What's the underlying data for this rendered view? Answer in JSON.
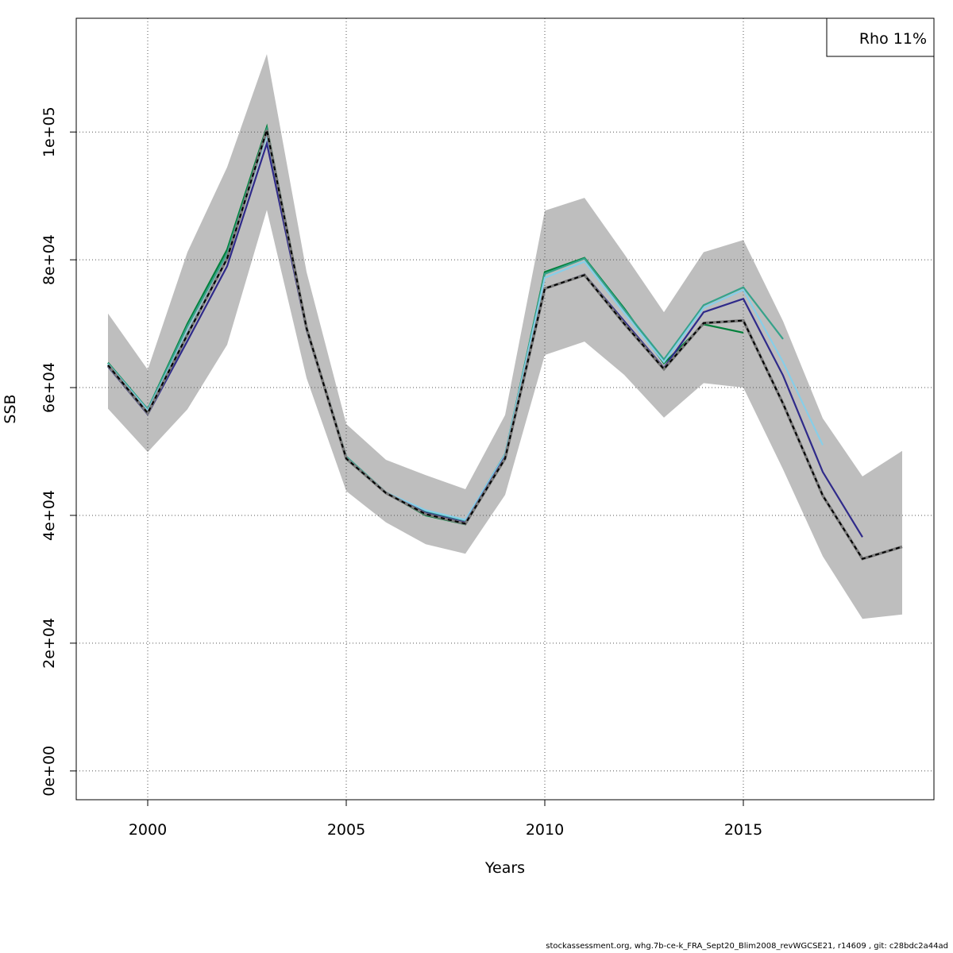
{
  "footer": "stockassessment.org, whg.7b-ce-k_FRA_Sept20_Blim2008_revWGCSE21, r14609 , git: c28bdc2a44ad",
  "chart_data": {
    "type": "line",
    "title": "",
    "xlabel": "Years",
    "ylabel": "SSB",
    "xlim": [
      1998.2,
      2019.8
    ],
    "ylim": [
      -4500,
      117800
    ],
    "x_ticks": [
      2000,
      2005,
      2010,
      2015
    ],
    "x_tick_labels": [
      "2000",
      "2005",
      "2010",
      "2015"
    ],
    "y_ticks": [
      0,
      20000,
      40000,
      60000,
      80000,
      100000
    ],
    "y_tick_labels": [
      "0e+00",
      "2e+04",
      "4e+04",
      "6e+04",
      "8e+04",
      "1e+05"
    ],
    "grid": true,
    "legend": {
      "placement": "top-right",
      "text": "Rho 11%"
    },
    "confidence_band": {
      "name": "confidence interval",
      "color": "#bebebe",
      "x": [
        1999,
        2000,
        2001,
        2002,
        2003,
        2004,
        2005,
        2006,
        2007,
        2008,
        2009,
        2010,
        2011,
        2012,
        2013,
        2014,
        2015,
        2016,
        2017,
        2018,
        2019
      ],
      "lower": [
        56700,
        49900,
        56600,
        66700,
        87800,
        61500,
        43800,
        38900,
        35500,
        34000,
        43200,
        65100,
        67200,
        62000,
        55300,
        60700,
        60000,
        47200,
        33600,
        23800,
        24500
      ],
      "upper": [
        71600,
        62800,
        81200,
        94500,
        112200,
        78100,
        54300,
        48700,
        46300,
        44100,
        55700,
        87700,
        89700,
        80900,
        71800,
        81200,
        83100,
        70400,
        55200,
        46100,
        50100
      ]
    },
    "series": [
      {
        "role": "retro-peel-5",
        "color": "#00803a",
        "x": [
          1999,
          2000,
          2001,
          2002,
          2003,
          2004,
          2005,
          2006,
          2007,
          2008,
          2009,
          2010,
          2011,
          2012,
          2013,
          2014,
          2015
        ],
        "values": [
          63900,
          56600,
          70000,
          81600,
          100800,
          69500,
          48800,
          43500,
          40000,
          38600,
          49300,
          78100,
          80300,
          72400,
          63800,
          69900,
          68600
        ]
      },
      {
        "role": "retro-peel-4",
        "color": "#36a28a",
        "x": [
          1999,
          2000,
          2001,
          2002,
          2003,
          2004,
          2005,
          2006,
          2007,
          2008,
          2009,
          2010,
          2011,
          2012,
          2013,
          2014,
          2015,
          2016
        ],
        "values": [
          63800,
          56600,
          69600,
          81000,
          100400,
          69400,
          49200,
          43600,
          40600,
          39200,
          49600,
          77800,
          80200,
          72200,
          64400,
          72900,
          75700,
          67600
        ]
      },
      {
        "role": "retro-peel-3",
        "color": "#87cee8",
        "x": [
          1999,
          2000,
          2001,
          2002,
          2003,
          2004,
          2005,
          2006,
          2007,
          2008,
          2009,
          2010,
          2011,
          2012,
          2013,
          2014,
          2015,
          2016,
          2017
        ],
        "values": [
          63700,
          56400,
          68800,
          80300,
          99500,
          69000,
          49000,
          43600,
          40800,
          39300,
          49500,
          77200,
          79700,
          71700,
          64000,
          72500,
          75300,
          64000,
          51000
        ]
      },
      {
        "role": "retro-peel-2",
        "color": "#2f2a8a",
        "x": [
          1999,
          2000,
          2001,
          2002,
          2003,
          2004,
          2005,
          2006,
          2007,
          2008,
          2009,
          2010,
          2011,
          2012,
          2013,
          2014,
          2015,
          2016,
          2017,
          2018
        ],
        "values": [
          63300,
          55800,
          67300,
          79000,
          98200,
          69000,
          48900,
          43500,
          40400,
          38900,
          49200,
          75500,
          77700,
          70400,
          63100,
          71800,
          73900,
          61900,
          46800,
          36600
        ]
      },
      {
        "role": "final-estimate",
        "color": "#000000",
        "dashed": true,
        "x": [
          1999,
          2000,
          2001,
          2002,
          2003,
          2004,
          2005,
          2006,
          2007,
          2008,
          2009,
          2010,
          2011,
          2012,
          2013,
          2014,
          2015,
          2016,
          2017,
          2018,
          2019
        ],
        "values": [
          63500,
          56000,
          68300,
          80200,
          100300,
          69300,
          48900,
          43500,
          40200,
          38700,
          48900,
          75500,
          77600,
          70000,
          62900,
          70100,
          70500,
          57500,
          43100,
          33200,
          35100
        ]
      }
    ]
  }
}
